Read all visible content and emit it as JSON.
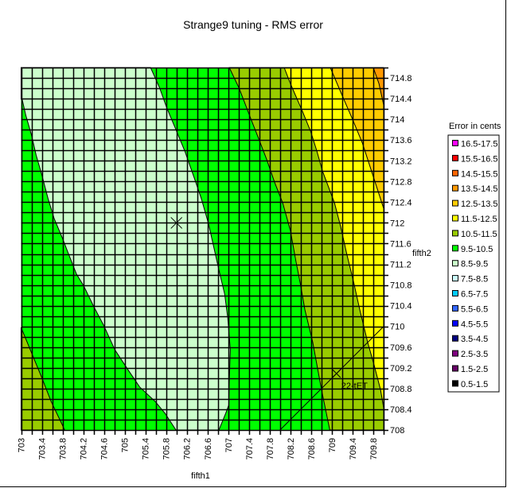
{
  "chart_data": {
    "type": "contour",
    "title": "Strange9 tuning - RMS error",
    "xlabel": "fifth1",
    "ylabel": "fifth2",
    "xlim": [
      703,
      710
    ],
    "ylim": [
      708,
      715
    ],
    "grid": true,
    "grid_step": 0.2,
    "xticks": [
      "703",
      "703.4",
      "703.8",
      "704.2",
      "704.6",
      "705",
      "705.4",
      "705.8",
      "706.2",
      "706.6",
      "707",
      "707.4",
      "707.8",
      "708.2",
      "708.6",
      "709",
      "709.4",
      "709.8"
    ],
    "yticks": [
      "708",
      "708.4",
      "708.8",
      "709.2",
      "709.6",
      "710",
      "710.4",
      "710.8",
      "711.2",
      "711.6",
      "712",
      "712.4",
      "712.8",
      "713.2",
      "713.6",
      "714",
      "714.4",
      "714.8"
    ],
    "background_band": "9.5-10.5",
    "legend": {
      "title": "Error in cents",
      "placement": "right",
      "items": [
        {
          "label": "16.5-17.5",
          "color": "#ff00ff"
        },
        {
          "label": "15.5-16.5",
          "color": "#ff0000"
        },
        {
          "label": "14.5-15.5",
          "color": "#ff6600"
        },
        {
          "label": "13.5-14.5",
          "color": "#ff9900"
        },
        {
          "label": "12.5-13.5",
          "color": "#ffcc00"
        },
        {
          "label": "11.5-12.5",
          "color": "#ffff00"
        },
        {
          "label": "10.5-11.5",
          "color": "#99cc00"
        },
        {
          "label": "9.5-10.5",
          "color": "#00ff00"
        },
        {
          "label": "8.5-9.5",
          "color": "#ccffcc"
        },
        {
          "label": "7.5-8.5",
          "color": "#ccffff"
        },
        {
          "label": "6.5-7.5",
          "color": "#00ccff"
        },
        {
          "label": "5.5-6.5",
          "color": "#3366ff"
        },
        {
          "label": "4.5-5.5",
          "color": "#0000ff"
        },
        {
          "label": "3.5-4.5",
          "color": "#000080"
        },
        {
          "label": "2.5-3.5",
          "color": "#800080"
        },
        {
          "label": "1.5-2.5",
          "color": "#660066"
        },
        {
          "label": "0.5-1.5",
          "color": "#000000"
        }
      ]
    },
    "regions": [
      {
        "band": "8.5-9.5",
        "color": "#ccffcc",
        "polygon": [
          [
            703,
            715
          ],
          [
            705.5,
            715
          ],
          [
            705.67,
            714.62
          ],
          [
            705.81,
            714.23
          ],
          [
            705.99,
            713.8
          ],
          [
            706.16,
            713.39
          ],
          [
            706.35,
            712.85
          ],
          [
            706.48,
            712.47
          ],
          [
            706.62,
            711.98
          ],
          [
            706.82,
            711.09
          ],
          [
            706.93,
            710.63
          ],
          [
            706.99,
            710.17
          ],
          [
            707.04,
            709.55
          ],
          [
            707.02,
            708.94
          ],
          [
            707.01,
            708.48
          ],
          [
            706.95,
            708.32
          ],
          [
            706.82,
            708
          ],
          [
            705.99,
            708
          ],
          [
            705.78,
            708.32
          ],
          [
            705.59,
            708.55
          ],
          [
            705.29,
            708.83
          ],
          [
            705.06,
            709.17
          ],
          [
            704.81,
            709.55
          ],
          [
            704.6,
            710.01
          ],
          [
            704.4,
            710.39
          ],
          [
            704.21,
            710.78
          ],
          [
            704.07,
            711.01
          ],
          [
            703.92,
            711.39
          ],
          [
            703.8,
            711.7
          ],
          [
            703.64,
            712.08
          ],
          [
            703.52,
            712.47
          ],
          [
            703.4,
            712.93
          ],
          [
            703.29,
            713.31
          ],
          [
            703.2,
            713.7
          ],
          [
            703.09,
            714.08
          ],
          [
            703.02,
            714.39
          ],
          [
            703,
            714.39
          ]
        ]
      },
      {
        "band": "10.5-11.5",
        "color": "#99cc00",
        "polygon": [
          [
            703,
            709.98
          ],
          [
            703.21,
            709.47
          ],
          [
            703.4,
            709.01
          ],
          [
            703.58,
            708.55
          ],
          [
            703.8,
            708.09
          ],
          [
            703.84,
            708
          ],
          [
            703,
            708
          ]
        ]
      },
      {
        "band": "10.5-11.5",
        "color": "#99cc00",
        "polygon": [
          [
            707.02,
            715
          ],
          [
            707.21,
            714.6
          ],
          [
            707.44,
            714
          ],
          [
            707.59,
            713.62
          ],
          [
            707.74,
            713.23
          ],
          [
            707.9,
            712.77
          ],
          [
            708.05,
            712.39
          ],
          [
            708.2,
            711.85
          ],
          [
            708.31,
            711.24
          ],
          [
            708.4,
            710.78
          ],
          [
            708.48,
            710.32
          ],
          [
            708.63,
            709.7
          ],
          [
            708.8,
            708.78
          ],
          [
            708.96,
            708
          ],
          [
            710,
            708
          ],
          [
            710,
            715
          ]
        ]
      },
      {
        "band": "11.5-12.5",
        "color": "#ffff00",
        "polygon": [
          [
            708.08,
            715
          ],
          [
            708.2,
            714.69
          ],
          [
            708.43,
            714.16
          ],
          [
            708.59,
            713.77
          ],
          [
            708.71,
            713.39
          ],
          [
            708.82,
            713
          ],
          [
            709.05,
            712.39
          ],
          [
            709.17,
            711.93
          ],
          [
            709.29,
            711.39
          ],
          [
            709.42,
            710.86
          ],
          [
            709.54,
            710.32
          ],
          [
            709.69,
            709.7
          ],
          [
            709.82,
            709.24
          ],
          [
            709.94,
            708.78
          ],
          [
            710,
            708.43
          ],
          [
            710,
            715
          ]
        ]
      },
      {
        "band": "12.5-13.5",
        "color": "#ffcc00",
        "polygon": [
          [
            708.97,
            715
          ],
          [
            709.2,
            714.46
          ],
          [
            709.4,
            714
          ],
          [
            709.59,
            713.54
          ],
          [
            709.74,
            713.08
          ],
          [
            709.89,
            712.62
          ],
          [
            710,
            712.28
          ],
          [
            710,
            715
          ]
        ]
      },
      {
        "band": "13.5-14.5",
        "color": "#ff9900",
        "polygon": [
          [
            709.8,
            715
          ],
          [
            709.91,
            714.69
          ],
          [
            710,
            714.28
          ],
          [
            710,
            715
          ]
        ]
      }
    ],
    "optimum_marker": {
      "x": 706.0,
      "y": 712.0
    },
    "annotations": [
      {
        "label": "22-tET",
        "line": [
          [
            708,
            708
          ],
          [
            710,
            710
          ]
        ],
        "marker": {
          "x": 709.09,
          "y": 709.09
        }
      }
    ]
  }
}
